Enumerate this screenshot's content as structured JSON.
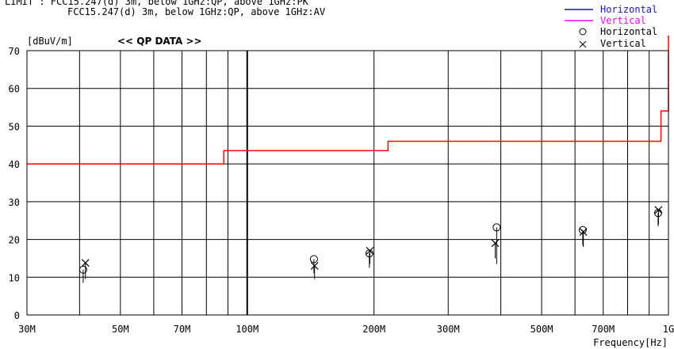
{
  "header": {
    "limit_line1": "LIMIT : FCC15.247(d) 3m, below 1GHz:QP, above 1GHz:PK",
    "limit_line2": "FCC15.247(d) 3m, below 1GHz:QP, above 1GHz:AV",
    "data_title": "<< QP DATA >>"
  },
  "legend": {
    "line_horizontal": "Horizontal",
    "line_vertical": "Vertical",
    "marker_horizontal": "Horizontal",
    "marker_vertical": "Vertical",
    "horizontal_line_color": "#1a1aa8",
    "vertical_line_color": "#ff00ff",
    "limit_color": "#ff0000"
  },
  "chart_data": {
    "type": "scatter",
    "ylabel": "[dBuV/m]",
    "xlabel": "Frequency[Hz]",
    "x_scale": "log",
    "xlim": [
      30000000,
      1000000000
    ],
    "ylim": [
      0,
      70
    ],
    "grid": true,
    "legend_position": "top-right",
    "x_ticks": [
      {
        "value": 30000000,
        "label": "30M"
      },
      {
        "value": 50000000,
        "label": "50M"
      },
      {
        "value": 70000000,
        "label": "70M"
      },
      {
        "value": 100000000,
        "label": "100M"
      },
      {
        "value": 200000000,
        "label": "200M"
      },
      {
        "value": 300000000,
        "label": "300M"
      },
      {
        "value": 500000000,
        "label": "500M"
      },
      {
        "value": 700000000,
        "label": "700M"
      },
      {
        "value": 1000000000,
        "label": "1G"
      }
    ],
    "x_minor_grid": [
      40000000,
      60000000,
      80000000,
      90000000,
      400000000,
      600000000,
      800000000,
      900000000
    ],
    "y_ticks": [
      0,
      10,
      20,
      30,
      40,
      50,
      60,
      70
    ],
    "limit_line": {
      "name": "LIMIT",
      "points": [
        [
          30000000,
          40
        ],
        [
          88000000,
          40
        ],
        [
          88000000,
          43.5
        ],
        [
          216000000,
          43.5
        ],
        [
          216000000,
          46
        ],
        [
          960000000,
          46
        ],
        [
          960000000,
          54
        ],
        [
          1000000000,
          54
        ],
        [
          1000000000,
          74
        ]
      ]
    },
    "series": [
      {
        "name": "Horizontal",
        "marker": "circle",
        "points": [
          {
            "x": 40800000,
            "y": 12.0,
            "bar_low": 8.5
          },
          {
            "x": 144000000,
            "y": 14.8,
            "bar_low": 11.0
          },
          {
            "x": 195000000,
            "y": 16.3,
            "bar_low": 12.5
          },
          {
            "x": 391000000,
            "y": 23.2,
            "bar_low": 13.5
          },
          {
            "x": 626000000,
            "y": 22.5,
            "bar_low": 18.5
          },
          {
            "x": 945000000,
            "y": 27.0,
            "bar_low": 23.5
          }
        ]
      },
      {
        "name": "Vertical",
        "marker": "x",
        "points": [
          {
            "x": 41300000,
            "y": 13.8,
            "bar_low": 9.5
          },
          {
            "x": 144500000,
            "y": 13.0,
            "bar_low": 9.5
          },
          {
            "x": 195500000,
            "y": 17.0,
            "bar_low": 13.5
          },
          {
            "x": 388000000,
            "y": 19.0,
            "bar_low": 15.0
          },
          {
            "x": 628000000,
            "y": 22.0,
            "bar_low": 18.0
          },
          {
            "x": 947000000,
            "y": 27.8,
            "bar_low": 24.0
          }
        ]
      }
    ]
  }
}
